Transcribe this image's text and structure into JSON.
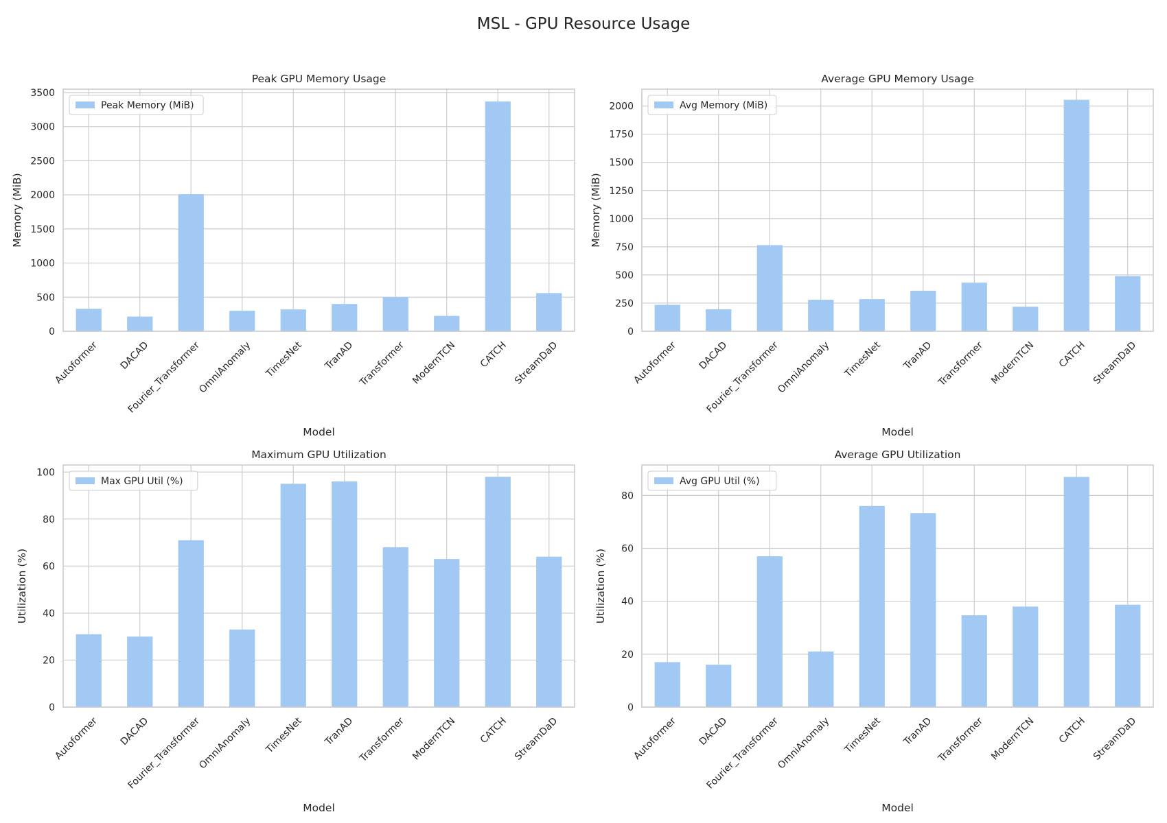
{
  "figure": {
    "title": "MSL - GPU Resource Usage"
  },
  "colors": {
    "bar": "#a1c9f4",
    "grid": "#cccccc",
    "text": "#262626",
    "legend_border": "#cccccc"
  },
  "chart_data": [
    {
      "type": "bar",
      "title": "Peak GPU Memory Usage",
      "xlabel": "Model",
      "ylabel": "Memory (MiB)",
      "ylim": [
        0,
        3550
      ],
      "yticks": [
        0,
        500,
        1000,
        1500,
        2000,
        2500,
        3000,
        3500
      ],
      "legend": {
        "placement": "top-left",
        "label": "Peak Memory (MiB)"
      },
      "grid": true,
      "categories": [
        "Autoformer",
        "DACAD",
        "Fourier_Transformer",
        "OmniAnomaly",
        "TimesNet",
        "TranAD",
        "Transformer",
        "ModernTCN",
        "CATCH",
        "StreamDaD"
      ],
      "series": [
        {
          "name": "Peak Memory (MiB)",
          "values": [
            330,
            215,
            2010,
            300,
            320,
            400,
            500,
            225,
            3370,
            560
          ]
        }
      ]
    },
    {
      "type": "bar",
      "title": "Average GPU Memory Usage",
      "xlabel": "Model",
      "ylabel": "Memory (MiB)",
      "ylim": [
        0,
        2150
      ],
      "yticks": [
        0,
        250,
        500,
        750,
        1000,
        1250,
        1500,
        1750,
        2000
      ],
      "legend": {
        "placement": "top-left",
        "label": "Avg Memory (MiB)"
      },
      "grid": true,
      "categories": [
        "Autoformer",
        "DACAD",
        "Fourier_Transformer",
        "OmniAnomaly",
        "TimesNet",
        "TranAD",
        "Transformer",
        "ModernTCN",
        "CATCH",
        "StreamDaD"
      ],
      "series": [
        {
          "name": "Avg Memory (MiB)",
          "values": [
            235,
            195,
            765,
            280,
            285,
            360,
            432,
            218,
            2055,
            490
          ]
        }
      ]
    },
    {
      "type": "bar",
      "title": "Maximum GPU Utilization",
      "xlabel": "Model",
      "ylabel": "Utilization (%)",
      "ylim": [
        0,
        103
      ],
      "yticks": [
        0,
        20,
        40,
        60,
        80,
        100
      ],
      "legend": {
        "placement": "top-left",
        "label": "Max GPU Util (%)"
      },
      "grid": true,
      "categories": [
        "Autoformer",
        "DACAD",
        "Fourier_Transformer",
        "OmniAnomaly",
        "TimesNet",
        "TranAD",
        "Transformer",
        "ModernTCN",
        "CATCH",
        "StreamDaD"
      ],
      "series": [
        {
          "name": "Max GPU Util (%)",
          "values": [
            31,
            30,
            71,
            33,
            95,
            96,
            68,
            63,
            98,
            64
          ]
        }
      ]
    },
    {
      "type": "bar",
      "title": "Average GPU Utilization",
      "xlabel": "Model",
      "ylabel": "Utilization (%)",
      "ylim": [
        0,
        91.5
      ],
      "yticks": [
        0,
        20,
        40,
        60,
        80
      ],
      "legend": {
        "placement": "top-left",
        "label": "Avg GPU Util (%)"
      },
      "grid": true,
      "categories": [
        "Autoformer",
        "DACAD",
        "Fourier_Transformer",
        "OmniAnomaly",
        "TimesNet",
        "TranAD",
        "Transformer",
        "ModernTCN",
        "CATCH",
        "StreamDaD"
      ],
      "series": [
        {
          "name": "Avg GPU Util (%)",
          "values": [
            17,
            16,
            57,
            21,
            76,
            73.3,
            34.7,
            38,
            87,
            38.7
          ]
        }
      ]
    }
  ]
}
